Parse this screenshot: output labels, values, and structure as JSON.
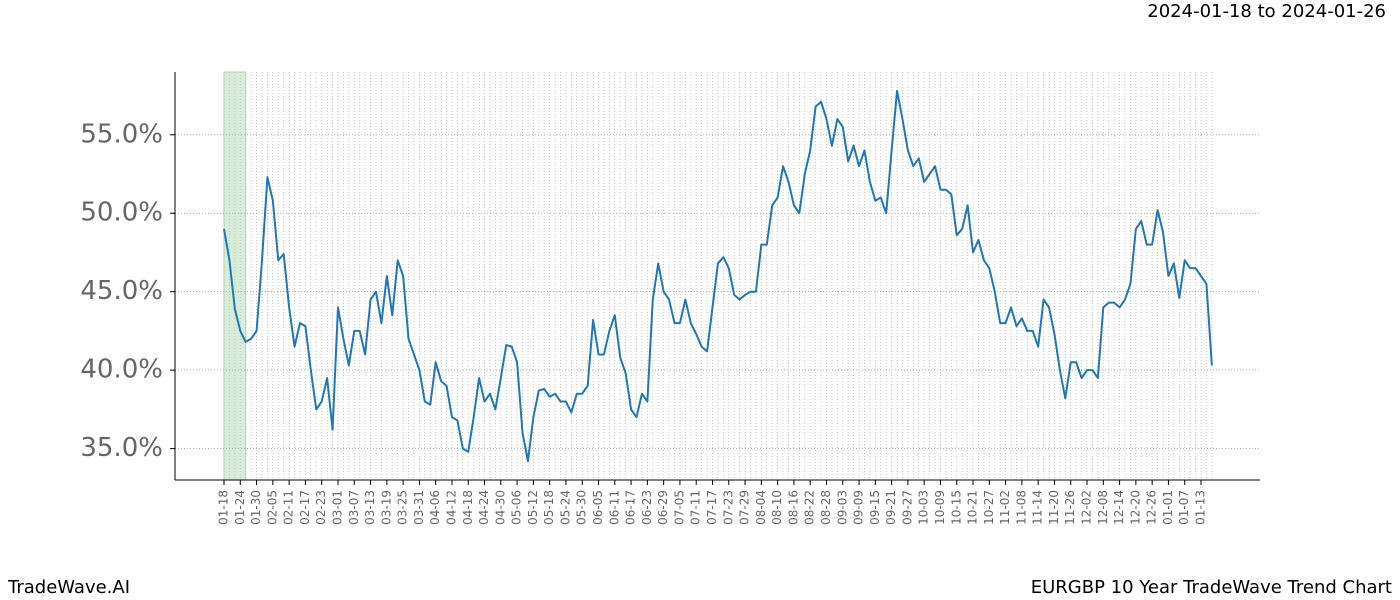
{
  "chart_data": {
    "type": "line",
    "title": "2024-01-18 to 2024-01-26",
    "footer_left": "TradeWave.AI",
    "footer_right": "EURGBP 10 Year TradeWave Trend Chart",
    "categories": [
      "01-18",
      null,
      null,
      "01-24",
      null,
      null,
      "01-30",
      null,
      null,
      "02-05",
      null,
      null,
      "02-11",
      null,
      null,
      "02-17",
      null,
      null,
      "02-23",
      null,
      null,
      "03-01",
      null,
      null,
      "03-07",
      null,
      null,
      "03-13",
      null,
      null,
      "03-19",
      null,
      null,
      "03-25",
      null,
      null,
      "03-31",
      null,
      null,
      "04-06",
      null,
      null,
      "04-12",
      null,
      null,
      "04-18",
      null,
      null,
      "04-24",
      null,
      null,
      "04-30",
      null,
      null,
      "05-06",
      null,
      null,
      "05-12",
      null,
      null,
      "05-18",
      null,
      null,
      "05-24",
      null,
      null,
      "05-30",
      null,
      null,
      "06-05",
      null,
      null,
      "06-11",
      null,
      null,
      "06-17",
      null,
      null,
      "06-23",
      null,
      null,
      "06-29",
      null,
      null,
      "07-05",
      null,
      null,
      "07-11",
      null,
      null,
      "07-17",
      null,
      null,
      "07-23",
      null,
      null,
      "07-29",
      null,
      null,
      "08-04",
      null,
      null,
      "08-10",
      null,
      null,
      "08-16",
      null,
      null,
      "08-22",
      null,
      null,
      "08-28",
      null,
      null,
      "09-03",
      null,
      null,
      "09-09",
      null,
      null,
      "09-15",
      null,
      null,
      "09-21",
      null,
      null,
      "09-27",
      null,
      null,
      "10-03",
      null,
      null,
      "10-09",
      null,
      null,
      "10-15",
      null,
      null,
      "10-21",
      null,
      null,
      "10-27",
      null,
      null,
      "11-02",
      null,
      null,
      "11-08",
      null,
      null,
      "11-14",
      null,
      null,
      "11-20",
      null,
      null,
      "11-26",
      null,
      null,
      "12-02",
      null,
      null,
      "12-08",
      null,
      null,
      "12-14",
      null,
      null,
      "12-20",
      null,
      null,
      "12-26",
      null,
      null,
      "01-01",
      null,
      null,
      "01-07",
      null,
      null,
      "01-13",
      null,
      null
    ],
    "values": [
      49.0,
      47.0,
      43.9,
      42.5,
      41.8,
      42.0,
      42.5,
      47.0,
      52.3,
      50.8,
      47.0,
      47.4,
      44.0,
      41.5,
      43.0,
      42.8,
      40.0,
      37.5,
      38.0,
      39.5,
      36.2,
      44.0,
      42.0,
      40.3,
      42.5,
      42.5,
      41.0,
      44.5,
      45.0,
      43.0,
      46.0,
      43.5,
      47.0,
      46.0,
      42.0,
      41.0,
      40.0,
      38.0,
      37.8,
      40.5,
      39.3,
      39.0,
      37.0,
      36.8,
      35.0,
      34.8,
      37.0,
      39.5,
      38.0,
      38.5,
      37.5,
      39.5,
      41.6,
      41.5,
      40.5,
      36.0,
      34.2,
      37.0,
      38.7,
      38.8,
      38.3,
      38.5,
      38.0,
      38.0,
      37.3,
      38.5,
      38.5,
      39.0,
      43.2,
      41.0,
      41.0,
      42.5,
      43.5,
      40.8,
      39.8,
      37.5,
      37.0,
      38.5,
      38.0,
      44.5,
      46.8,
      45.0,
      44.5,
      43.0,
      43.0,
      44.5,
      43.0,
      42.3,
      41.5,
      41.2,
      44.0,
      46.8,
      47.2,
      46.5,
      44.8,
      44.5,
      44.8,
      45.0,
      45.0,
      48.0,
      48.0,
      50.5,
      51.0,
      53.0,
      52.0,
      50.5,
      50.0,
      52.5,
      54.0,
      56.8,
      57.1,
      56.0,
      54.3,
      56.0,
      55.5,
      53.3,
      54.3,
      53.0,
      54.0,
      52.0,
      50.8,
      51.0,
      50.0,
      54.0,
      57.8,
      56.0,
      54.0,
      53.0,
      53.5,
      52.0,
      52.5,
      53.0,
      51.5,
      51.5,
      51.2,
      48.6,
      49.0,
      50.5,
      47.5,
      48.3,
      47.0,
      46.5,
      45.0,
      43.0,
      43.0,
      44.0,
      42.8,
      43.3,
      42.5,
      42.5,
      41.5,
      44.5,
      44.0,
      42.3,
      40.0,
      38.2,
      40.5,
      40.5,
      39.5,
      40.0,
      40.0,
      39.5,
      44.0,
      44.3,
      44.3,
      44.0,
      44.5,
      45.5,
      49.0,
      49.5,
      48.0,
      48.0,
      50.2,
      48.8,
      46.0,
      46.8,
      44.6,
      47.0,
      46.5,
      46.5,
      46.0,
      45.5,
      40.3
    ],
    "color": "#1f77b4",
    "shaded_span": [
      0,
      4
    ],
    "shaded_color": "#d9ecd9",
    "ylim": [
      33.0,
      59.0
    ],
    "yticks": [
      {
        "value": 35,
        "label": "35.0%"
      },
      {
        "value": 40,
        "label": "40.0%"
      },
      {
        "value": 45,
        "label": "45.0%"
      },
      {
        "value": 50,
        "label": "50.0%"
      },
      {
        "value": 55,
        "label": "55.0%"
      }
    ],
    "grid": true
  }
}
